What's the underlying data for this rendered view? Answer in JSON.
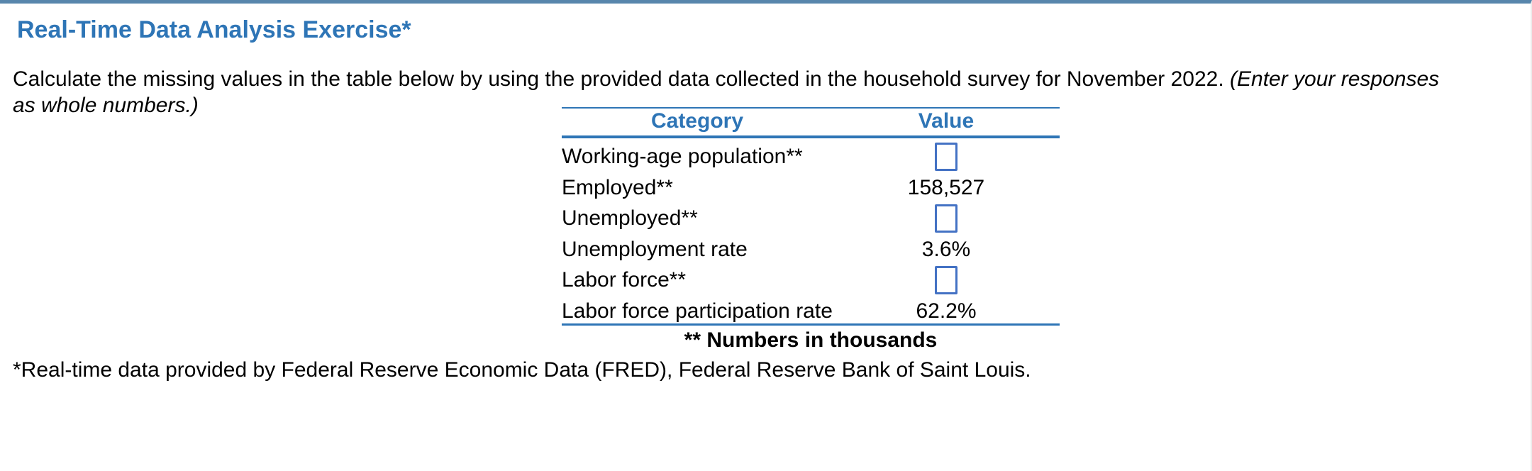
{
  "page": {
    "title": "Real-Time Data Analysis Exercise*",
    "instruction_main": "Calculate the missing values in the table below by using the provided data collected in the household survey for November 2022. ",
    "instruction_note": "(Enter your responses as whole numbers.)",
    "footnote": "*Real-time data provided by Federal Reserve Economic Data (FRED), Federal Reserve Bank of Saint Louis."
  },
  "table": {
    "headers": [
      "Category",
      "Value"
    ],
    "rows": [
      {
        "category": "Working-age population**",
        "value": "",
        "has_input": true
      },
      {
        "category": "Employed**",
        "value": "158,527",
        "has_input": false
      },
      {
        "category": "Unemployed**",
        "value": "",
        "has_input": true
      },
      {
        "category": "Unemployment rate",
        "value": "3.6%",
        "has_input": false
      },
      {
        "category": "Labor force**",
        "value": "",
        "has_input": true
      },
      {
        "category": "Labor force participation rate",
        "value": "62.2%",
        "has_input": false
      }
    ],
    "caption": "** Numbers in thousands"
  },
  "colors": {
    "accent_blue": "#2E75B6",
    "input_border_blue": "#4472C4",
    "top_bar_blue": "#5886AC"
  }
}
